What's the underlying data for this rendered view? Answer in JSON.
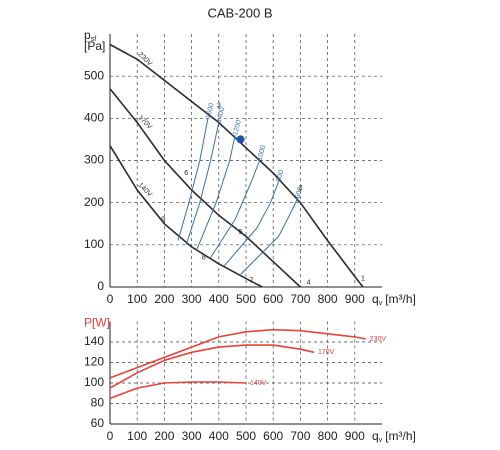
{
  "chart_data": [
    {
      "type": "line",
      "title": "CAB-200 B",
      "y_label": {
        "main": "p",
        "sub": "sf",
        "unit": "[Pa]"
      },
      "x_label": {
        "main": "q",
        "sub": "v",
        "unit": "[m³/h]"
      },
      "xlim": [
        0,
        1000
      ],
      "xticks": [
        0,
        100,
        200,
        300,
        400,
        500,
        600,
        700,
        800,
        900
      ],
      "ylim": [
        0,
        600
      ],
      "yticks": [
        0,
        100,
        200,
        300,
        400,
        500
      ],
      "grid": true,
      "series": [
        {
          "name": "230V",
          "color": "#2b2b2b",
          "x": [
            0,
            100,
            200,
            300,
            400,
            500,
            600,
            700,
            800,
            900,
            930
          ],
          "values": [
            575,
            540,
            490,
            440,
            390,
            330,
            270,
            200,
            110,
            25,
            0
          ]
        },
        {
          "name": "170V",
          "color": "#2b2b2b",
          "x": [
            0,
            100,
            200,
            300,
            400,
            500,
            600,
            700
          ],
          "values": [
            470,
            390,
            300,
            230,
            170,
            120,
            60,
            0
          ]
        },
        {
          "name": "140V",
          "color": "#2b2b2b",
          "x": [
            0,
            100,
            200,
            300,
            400,
            500,
            560
          ],
          "values": [
            335,
            230,
            150,
            95,
            55,
            20,
            0
          ]
        },
        {
          "name": "1600",
          "color": "#3a6fa8",
          "x": [
            250,
            290,
            330,
            360
          ],
          "values": [
            110,
            200,
            300,
            400
          ]
        },
        {
          "name": "1400",
          "color": "#3a6fa8",
          "x": [
            280,
            330,
            370,
            400
          ],
          "values": [
            100,
            200,
            300,
            390
          ]
        },
        {
          "name": "1200",
          "color": "#3a6fa8",
          "x": [
            320,
            390,
            440,
            460
          ],
          "values": [
            90,
            200,
            300,
            360
          ]
        },
        {
          "name": "1000",
          "color": "#3a6fa8",
          "x": [
            370,
            460,
            520,
            550
          ],
          "values": [
            70,
            160,
            250,
            300
          ]
        },
        {
          "name": "800",
          "color": "#3a6fa8",
          "x": [
            420,
            540,
            590,
            620
          ],
          "values": [
            50,
            140,
            200,
            250
          ]
        },
        {
          "name": "600",
          "color": "#3a6fa8",
          "x": [
            480,
            620,
            660,
            690
          ],
          "values": [
            30,
            120,
            170,
            210
          ]
        }
      ],
      "annotations": [
        {
          "text": "1",
          "x": 930,
          "y": 20
        },
        {
          "text": "2",
          "x": 700,
          "y": 235
        },
        {
          "text": "3",
          "x": 400,
          "y": 430
        },
        {
          "text": "4",
          "x": 730,
          "y": 10
        },
        {
          "text": "5",
          "x": 480,
          "y": 130
        },
        {
          "text": "6",
          "x": 280,
          "y": 270
        },
        {
          "text": "7",
          "x": 520,
          "y": 15
        },
        {
          "text": "8",
          "x": 345,
          "y": 70
        },
        {
          "text": "9",
          "x": 195,
          "y": 160
        }
      ],
      "marker": {
        "x": 480,
        "y": 350,
        "color": "#1f4fb0"
      }
    },
    {
      "type": "line",
      "y_label": {
        "main": "P[W]",
        "color": "#e8433a"
      },
      "x_label": {
        "main": "q",
        "sub": "v",
        "unit": "[m³/h]"
      },
      "xlim": [
        0,
        1000
      ],
      "xticks": [
        0,
        100,
        200,
        300,
        400,
        500,
        600,
        700,
        800,
        900
      ],
      "ylim": [
        60,
        160
      ],
      "yticks": [
        60,
        80,
        100,
        120,
        140
      ],
      "grid": true,
      "series": [
        {
          "name": "230V",
          "color": "#e8433a",
          "x": [
            0,
            100,
            200,
            300,
            400,
            500,
            600,
            700,
            800,
            900,
            940
          ],
          "values": [
            105,
            115,
            125,
            135,
            145,
            150,
            152,
            151,
            148,
            145,
            143
          ]
        },
        {
          "name": "170V",
          "color": "#e8433a",
          "x": [
            0,
            100,
            200,
            300,
            400,
            500,
            600,
            700,
            750
          ],
          "values": [
            95,
            110,
            122,
            130,
            135,
            137,
            137,
            133,
            130
          ]
        },
        {
          "name": "140V",
          "color": "#e8433a",
          "x": [
            0,
            100,
            200,
            300,
            400,
            500
          ],
          "values": [
            85,
            95,
            100,
            101,
            101,
            100
          ]
        }
      ]
    }
  ]
}
